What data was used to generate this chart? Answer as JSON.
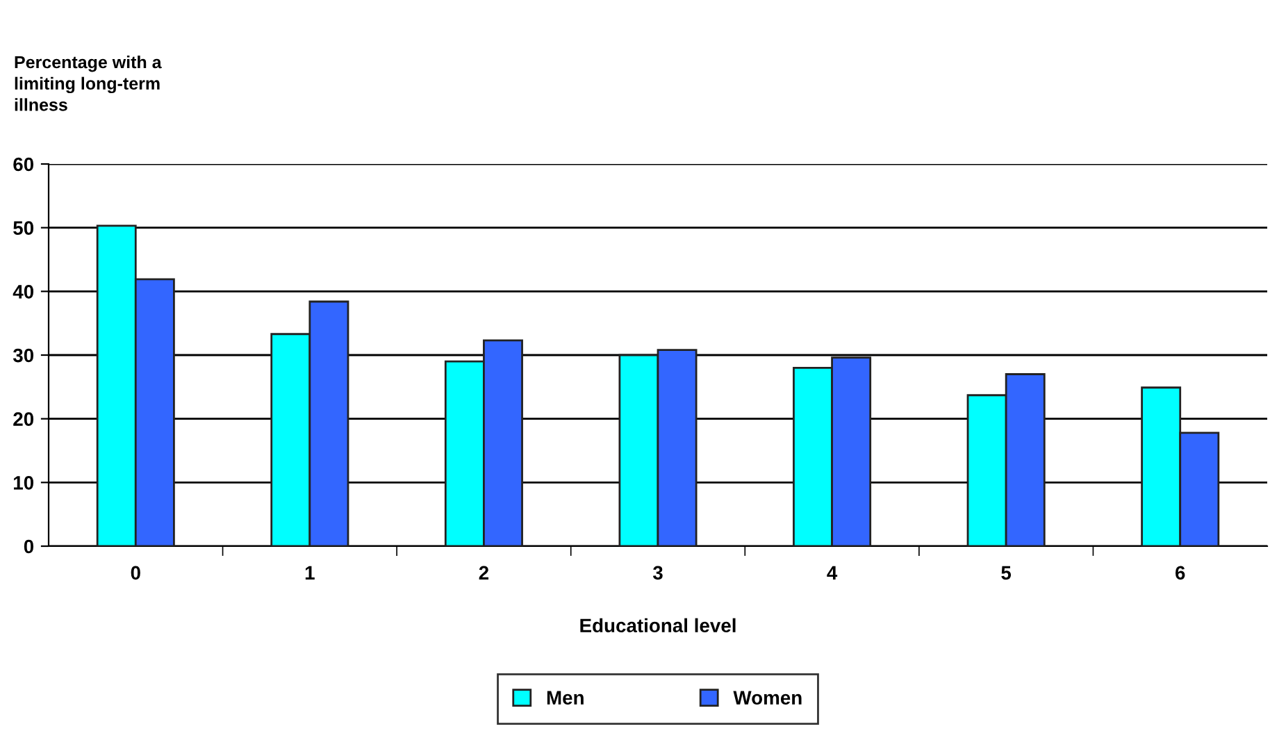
{
  "chart_data": {
    "type": "bar",
    "ylabel": "Percentage with a\nlimiting long-term\nillness",
    "xlabel": "Educational level",
    "categories": [
      "0",
      "1",
      "2",
      "3",
      "4",
      "5",
      "6"
    ],
    "series": [
      {
        "name": "Men",
        "color": "#00ffff",
        "values": [
          50.3,
          33.3,
          29.0,
          30.0,
          28.0,
          23.7,
          24.9
        ]
      },
      {
        "name": "Women",
        "color": "#3366ff",
        "values": [
          41.9,
          38.4,
          32.3,
          30.8,
          29.6,
          27.0,
          17.8
        ]
      }
    ],
    "ylim": [
      0,
      60
    ],
    "yticks": [
      0,
      10,
      20,
      30,
      40,
      50,
      60
    ],
    "grid": "y",
    "legend": "bottom"
  }
}
